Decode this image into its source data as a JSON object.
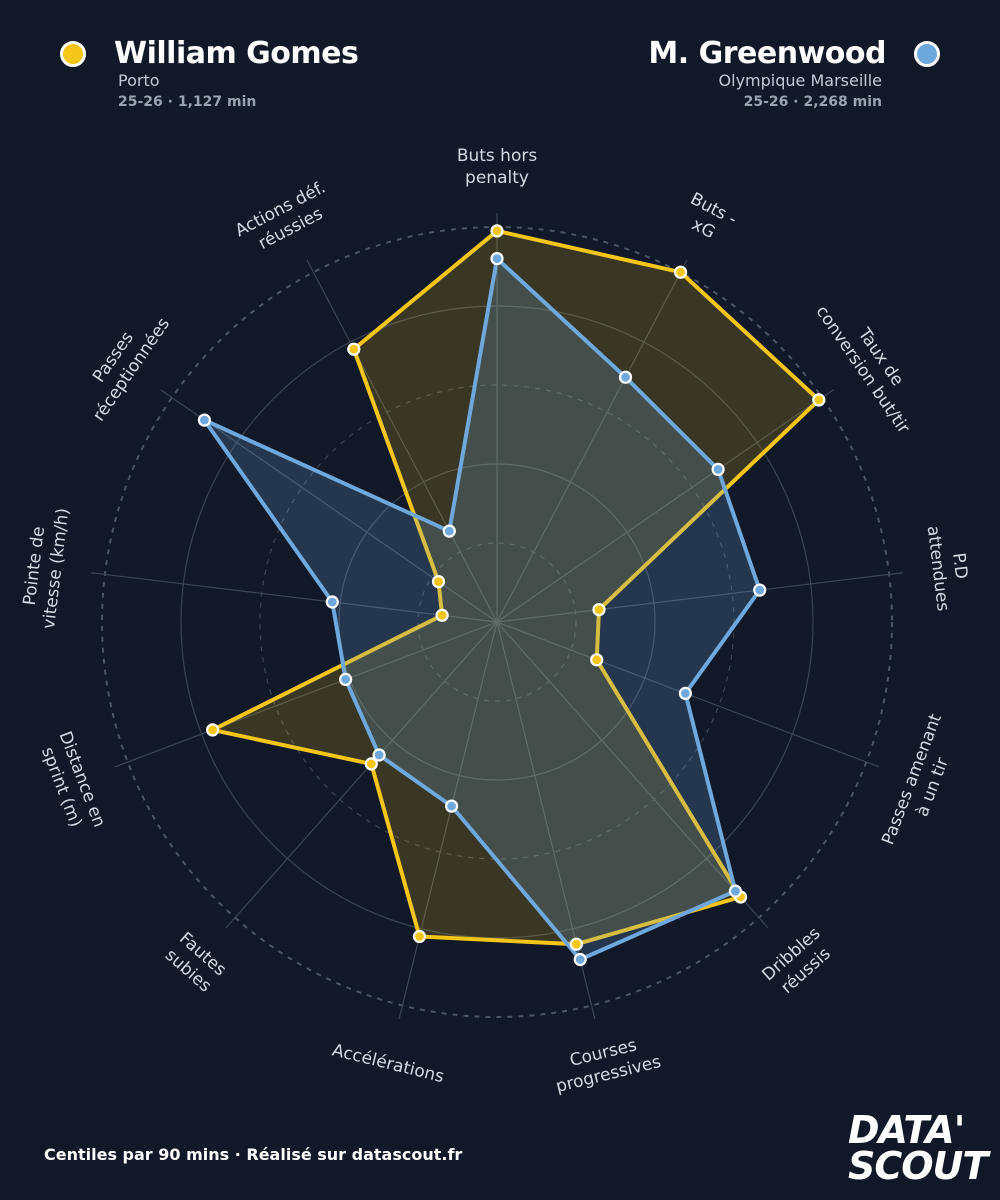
{
  "players": {
    "left": {
      "name": "William Gomes",
      "club": "Porto",
      "season": "25-26 · 1,127 min",
      "color": "#F5C518"
    },
    "right": {
      "name": "M. Greenwood",
      "club": "Olympique Marseille",
      "season": "25-26 · 2,268 min",
      "color": "#6FA8DC"
    }
  },
  "footer": "Centiles par 90 mins · Réalisé sur datascout.fr",
  "logo": {
    "line1": "DATA'",
    "line2": "SCOUT"
  },
  "chart_data": {
    "type": "radar",
    "scale": [
      0,
      100
    ],
    "rings": [
      20,
      40,
      60,
      80,
      100
    ],
    "axes": [
      [
        "Buts hors",
        "penalty"
      ],
      [
        "Buts -",
        "xG"
      ],
      [
        "Taux de",
        "conversion but/tir"
      ],
      [
        "P.D",
        "attendues"
      ],
      [
        "Passes amenant",
        "à un tir"
      ],
      [
        "Dribbles",
        "réussis"
      ],
      [
        "Courses",
        "progressives"
      ],
      [
        "Accélérations"
      ],
      [
        "Fautes",
        "subies"
      ],
      [
        "Distance en",
        "sprint (m)"
      ],
      [
        "Pointe de",
        "vitesse (km/h)"
      ],
      [
        "Passes",
        "réceptionnées"
      ],
      [
        "Actions déf.",
        "réussies"
      ]
    ],
    "series": [
      {
        "name": "William Gomes",
        "color": "#F5C518",
        "fill": "rgba(245,197,24,0.18)",
        "values": [
          99,
          100,
          99,
          26,
          27,
          93,
          84,
          82,
          48,
          77,
          14,
          18,
          78
        ]
      },
      {
        "name": "M. Greenwood",
        "color": "#6FA8DC",
        "fill": "rgba(111,168,220,0.22)",
        "values": [
          92,
          70,
          68,
          67,
          51,
          91,
          88,
          48,
          45,
          41,
          42,
          90,
          26
        ]
      }
    ]
  }
}
